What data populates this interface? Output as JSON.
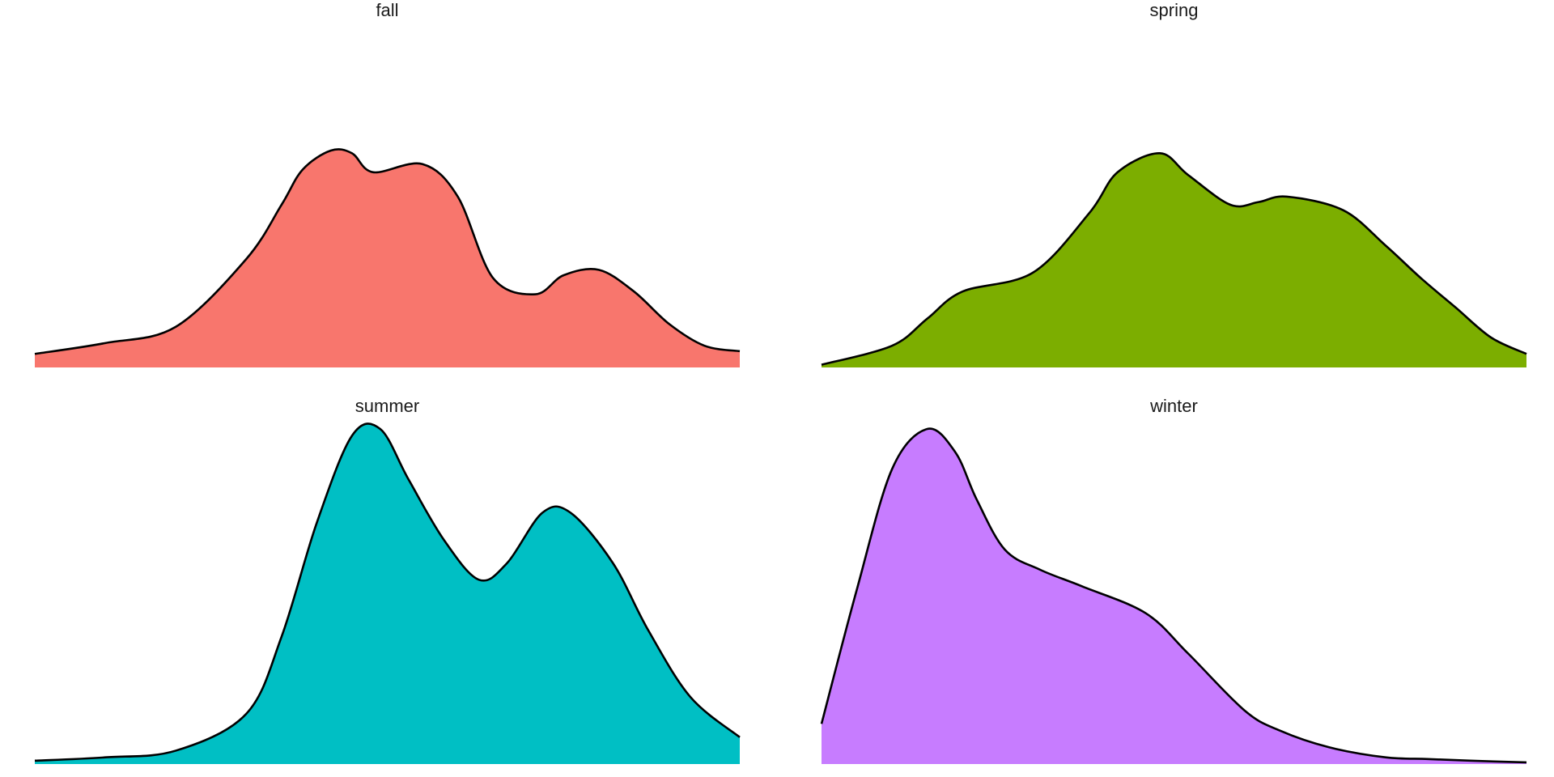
{
  "chart_data": {
    "type": "area",
    "layout": "2x2 facet grid",
    "axes_visible": false,
    "grid": false,
    "ylim": [
      0,
      1
    ],
    "panels": [
      {
        "title": "fall",
        "color": "#F8766D",
        "x": [
          0,
          0.1,
          0.2,
          0.3,
          0.35,
          0.38,
          0.42,
          0.45,
          0.48,
          0.55,
          0.6,
          0.65,
          0.71,
          0.75,
          0.8,
          0.85,
          0.9,
          0.95,
          1
        ],
        "y": [
          0.05,
          0.09,
          0.15,
          0.4,
          0.6,
          0.73,
          0.8,
          0.79,
          0.72,
          0.75,
          0.63,
          0.33,
          0.27,
          0.34,
          0.36,
          0.28,
          0.16,
          0.08,
          0.06
        ]
      },
      {
        "title": "spring",
        "color": "#7CAE00",
        "x": [
          0,
          0.1,
          0.15,
          0.2,
          0.3,
          0.38,
          0.42,
          0.48,
          0.52,
          0.58,
          0.62,
          0.66,
          0.74,
          0.8,
          0.85,
          0.9,
          0.95,
          1
        ],
        "y": [
          0.01,
          0.08,
          0.18,
          0.28,
          0.35,
          0.57,
          0.72,
          0.79,
          0.71,
          0.6,
          0.61,
          0.63,
          0.58,
          0.45,
          0.33,
          0.22,
          0.11,
          0.05
        ]
      },
      {
        "title": "summer",
        "color": "#00BFC4",
        "x": [
          0,
          0.1,
          0.2,
          0.3,
          0.35,
          0.4,
          0.45,
          0.49,
          0.53,
          0.58,
          0.63,
          0.67,
          0.72,
          0.76,
          0.82,
          0.87,
          0.93,
          1
        ],
        "y": [
          0.01,
          0.02,
          0.04,
          0.15,
          0.38,
          0.72,
          0.98,
          1.0,
          0.85,
          0.67,
          0.55,
          0.6,
          0.75,
          0.75,
          0.6,
          0.4,
          0.2,
          0.08
        ]
      },
      {
        "title": "winter",
        "color": "#C77CFF",
        "x": [
          0,
          0.05,
          0.1,
          0.15,
          0.19,
          0.22,
          0.26,
          0.31,
          0.37,
          0.46,
          0.52,
          0.6,
          0.65,
          0.72,
          0.8,
          0.86,
          0.92,
          1
        ],
        "y": [
          0.12,
          0.52,
          0.88,
          1.0,
          0.93,
          0.79,
          0.64,
          0.58,
          0.53,
          0.45,
          0.33,
          0.16,
          0.1,
          0.05,
          0.02,
          0.015,
          0.01,
          0.005
        ]
      }
    ]
  }
}
